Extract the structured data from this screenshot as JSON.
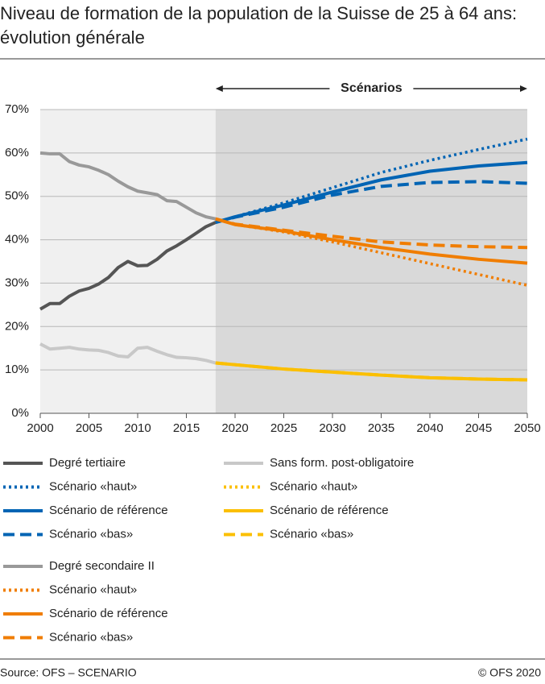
{
  "chart_data": {
    "type": "line",
    "title": "Niveau de formation de la population de la Suisse de 25 à 64 ans: évolution générale",
    "annotation": "Scénarios",
    "source": "Source: OFS – SCENARIO",
    "copyright": "© OFS 2020",
    "xlim": [
      2000,
      2050
    ],
    "xticks": [
      2000,
      2005,
      2010,
      2015,
      2020,
      2025,
      2030,
      2035,
      2040,
      2045,
      2050
    ],
    "ylim": [
      0,
      70
    ],
    "yticks": [
      {
        "value": 0,
        "label": "0%"
      },
      {
        "value": 10,
        "label": "10%"
      },
      {
        "value": 20,
        "label": "20%"
      },
      {
        "value": 30,
        "label": "30%"
      },
      {
        "value": 40,
        "label": "40%"
      },
      {
        "value": 50,
        "label": "50%"
      },
      {
        "value": 60,
        "label": "60%"
      },
      {
        "value": 70,
        "label": "70%"
      }
    ],
    "grid": true,
    "series": [
      {
        "name": "Degré tertiaire",
        "color": "#555555",
        "dash": "solid",
        "x": [
          2000,
          2001,
          2002,
          2003,
          2004,
          2005,
          2006,
          2007,
          2008,
          2009,
          2010,
          2011,
          2012,
          2013,
          2014,
          2015,
          2016,
          2017,
          2018
        ],
        "values": [
          24,
          25.3,
          25.3,
          27,
          28.2,
          28.8,
          29.8,
          31.3,
          33.6,
          35,
          34,
          34.1,
          35.5,
          37.4,
          38.6,
          40,
          41.5,
          43,
          44
        ]
      },
      {
        "name": "Scénario «haut»",
        "color": "#0064b4",
        "dash": "dotted",
        "x": [
          2018,
          2020,
          2025,
          2030,
          2035,
          2040,
          2045,
          2050
        ],
        "values": [
          44,
          45.3,
          48.5,
          52,
          55.5,
          58.3,
          60.8,
          63.2
        ]
      },
      {
        "name": "Scénario de référence",
        "color": "#0064b4",
        "dash": "solid",
        "x": [
          2018,
          2020,
          2025,
          2030,
          2035,
          2040,
          2045,
          2050
        ],
        "values": [
          44,
          45.3,
          48,
          51,
          53.8,
          55.8,
          57,
          57.8
        ]
      },
      {
        "name": "Scénario «bas»",
        "color": "#0064b4",
        "dash": "dashed",
        "x": [
          2018,
          2020,
          2025,
          2030,
          2035,
          2040,
          2045,
          2050
        ],
        "values": [
          44,
          45.2,
          47.5,
          50.3,
          52.3,
          53.2,
          53.4,
          53
        ]
      },
      {
        "name": "Degré secondaire II",
        "color": "#999999",
        "dash": "solid",
        "x": [
          2000,
          2001,
          2002,
          2003,
          2004,
          2005,
          2006,
          2007,
          2008,
          2009,
          2010,
          2011,
          2012,
          2013,
          2014,
          2015,
          2016,
          2017,
          2018
        ],
        "values": [
          60,
          59.8,
          59.8,
          58,
          57.2,
          56.8,
          56,
          55,
          53.5,
          52.2,
          51.2,
          50.8,
          50.4,
          49,
          48.8,
          47.5,
          46.2,
          45.3,
          44.8
        ]
      },
      {
        "name": "Scénario «haut»",
        "color": "#f07d00",
        "dash": "dotted",
        "x": [
          2018,
          2020,
          2025,
          2030,
          2035,
          2040,
          2045,
          2050
        ],
        "values": [
          44.8,
          43.5,
          41.8,
          39.5,
          37,
          34.5,
          32,
          29.5
        ]
      },
      {
        "name": "Scénario de référence",
        "color": "#f07d00",
        "dash": "solid",
        "x": [
          2018,
          2020,
          2025,
          2030,
          2035,
          2040,
          2045,
          2050
        ],
        "values": [
          44.8,
          43.5,
          42,
          40,
          38.2,
          36.7,
          35.5,
          34.6
        ]
      },
      {
        "name": "Scénario «bas»",
        "color": "#f07d00",
        "dash": "dashed",
        "x": [
          2018,
          2020,
          2025,
          2030,
          2035,
          2040,
          2045,
          2050
        ],
        "values": [
          44.8,
          43.6,
          42.2,
          40.8,
          39.5,
          38.8,
          38.4,
          38.2
        ]
      },
      {
        "name": "Sans form. post-obligatoire",
        "color": "#c8c8c8",
        "dash": "solid",
        "x": [
          2000,
          2001,
          2002,
          2003,
          2004,
          2005,
          2006,
          2007,
          2008,
          2009,
          2010,
          2011,
          2012,
          2013,
          2014,
          2015,
          2016,
          2017,
          2018
        ],
        "values": [
          16,
          14.8,
          15,
          15.2,
          14.8,
          14.6,
          14.5,
          14,
          13.2,
          13,
          15,
          15.2,
          14.3,
          13.5,
          12.9,
          12.8,
          12.6,
          12.2,
          11.6
        ]
      },
      {
        "name": "Scénario «haut»",
        "color": "#fbbf00",
        "dash": "dotted",
        "x": [
          2018,
          2020,
          2025,
          2030,
          2035,
          2040,
          2045,
          2050
        ],
        "values": [
          11.6,
          11.2,
          10.2,
          9.5,
          8.8,
          8.2,
          7.9,
          7.7
        ]
      },
      {
        "name": "Scénario de référence",
        "color": "#fbbf00",
        "dash": "solid",
        "x": [
          2018,
          2020,
          2025,
          2030,
          2035,
          2040,
          2045,
          2050
        ],
        "values": [
          11.6,
          11.2,
          10.2,
          9.5,
          8.8,
          8.2,
          7.9,
          7.7
        ]
      },
      {
        "name": "Scénario «bas»",
        "color": "#fbbf00",
        "dash": "dashed",
        "x": [
          2018,
          2020,
          2025,
          2030,
          2035,
          2040,
          2045,
          2050
        ],
        "values": [
          11.6,
          11.2,
          10.2,
          9.5,
          8.8,
          8.2,
          7.9,
          7.7
        ]
      }
    ]
  }
}
